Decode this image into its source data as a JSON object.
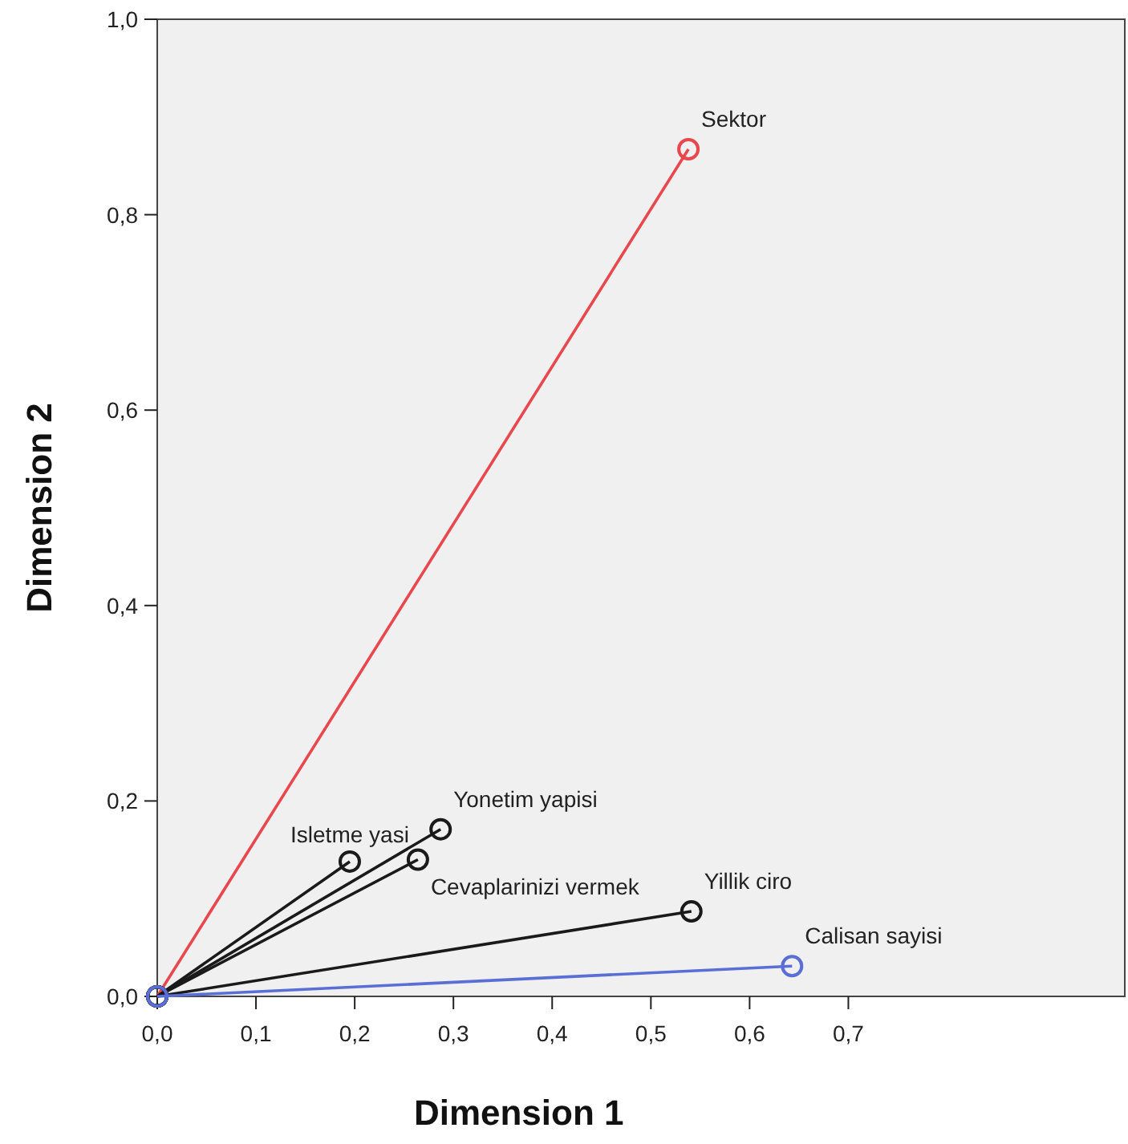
{
  "chart_data": {
    "type": "line",
    "xlabel": "Dimension 1",
    "ylabel": "Dimension 2",
    "xlim": [
      0,
      0.98
    ],
    "ylim": [
      0,
      1
    ],
    "xticks": [
      {
        "value": 0,
        "label": "0,0"
      },
      {
        "value": 0.1,
        "label": "0,1"
      },
      {
        "value": 0.2,
        "label": "0,2"
      },
      {
        "value": 0.3,
        "label": "0,3"
      },
      {
        "value": 0.4,
        "label": "0,4"
      },
      {
        "value": 0.5,
        "label": "0,5"
      },
      {
        "value": 0.6,
        "label": "0,6"
      },
      {
        "value": 0.7,
        "label": "0,7"
      }
    ],
    "yticks": [
      {
        "value": 0,
        "label": "0,0"
      },
      {
        "value": 0.2,
        "label": "0,2"
      },
      {
        "value": 0.4,
        "label": "0,4"
      },
      {
        "value": 0.6,
        "label": "0,6"
      },
      {
        "value": 0.8,
        "label": "0,8"
      },
      {
        "value": 1,
        "label": "1,0"
      }
    ],
    "marker": "circle",
    "grid": false,
    "series": [
      {
        "name": "Sektor",
        "color": "#e8474d",
        "x": [
          0,
          0.538
        ],
        "values": [
          0,
          0.867
        ]
      },
      {
        "name": "Isletme yasi",
        "color": "#1a1a1a",
        "x": [
          0,
          0.195
        ],
        "values": [
          0,
          0.138
        ]
      },
      {
        "name": "Cevaplarinizi vermek",
        "color": "#1a1a1a",
        "x": [
          0,
          0.264
        ],
        "values": [
          0,
          0.14
        ]
      },
      {
        "name": "Yonetim yapisi",
        "color": "#1a1a1a",
        "x": [
          0,
          0.287
        ],
        "values": [
          0,
          0.171
        ]
      },
      {
        "name": "Yillik ciro",
        "color": "#1a1a1a",
        "x": [
          0,
          0.541
        ],
        "values": [
          0,
          0.087
        ]
      },
      {
        "name": "Calisan sayisi",
        "color": "#5a6fd6",
        "x": [
          0,
          0.643
        ],
        "values": [
          0,
          0.031
        ]
      }
    ]
  }
}
